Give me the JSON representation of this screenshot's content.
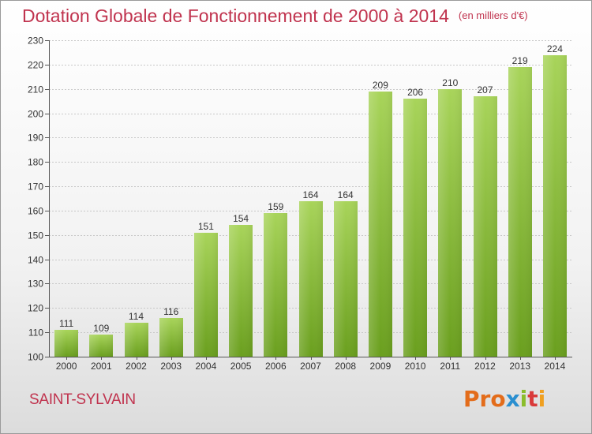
{
  "header": {
    "title": "Dotation Globale de Fonctionnement de 2000 à 2014",
    "unit": "(en milliers d'€)"
  },
  "commune": "SAINT-SYLVAIN",
  "logo": {
    "text": "Proxiti"
  },
  "colors": {
    "title": "#c0334e",
    "bar_light": "#a8d45a",
    "bar_dark": "#6a9f1e",
    "grid": "#c8c8c8",
    "axis_text": "#333333"
  },
  "chart_data": {
    "type": "bar",
    "title": "Dotation Globale de Fonctionnement de 2000 à 2014",
    "subtitle": "(en milliers d'€)",
    "xlabel": "",
    "ylabel": "",
    "ylim": [
      100,
      230
    ],
    "yticks": [
      100,
      110,
      120,
      130,
      140,
      150,
      160,
      170,
      180,
      190,
      200,
      210,
      220,
      230
    ],
    "grid": true,
    "categories": [
      "2000",
      "2001",
      "2002",
      "2003",
      "2004",
      "2005",
      "2006",
      "2007",
      "2008",
      "2009",
      "2010",
      "2011",
      "2012",
      "2013",
      "2014"
    ],
    "values": [
      111,
      109,
      114,
      116,
      151,
      154,
      159,
      164,
      164,
      209,
      206,
      210,
      207,
      219,
      224
    ]
  }
}
